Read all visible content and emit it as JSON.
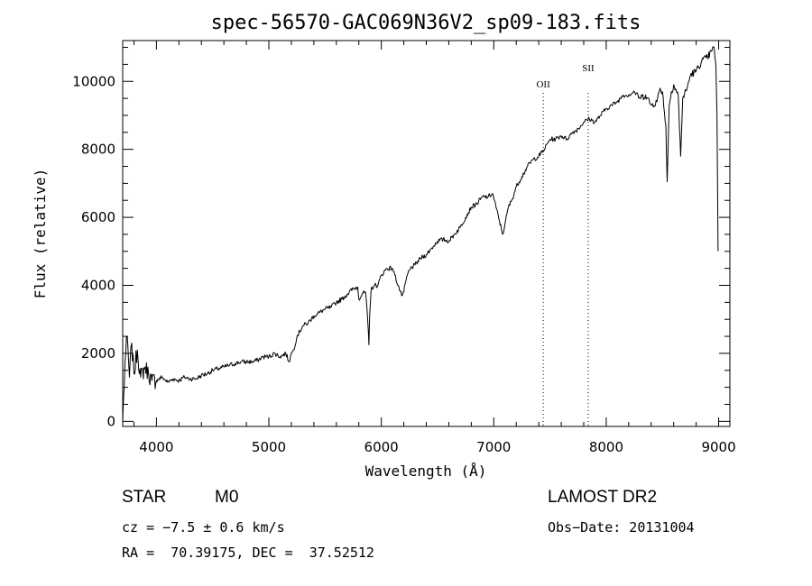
{
  "chart_data": {
    "type": "line",
    "title": "spec-56570-GAC069N36V2_sp09-183.fits",
    "xlabel": "Wavelength (Å)",
    "ylabel": "Flux (relative)",
    "xlim": [
      3700,
      9100
    ],
    "ylim": [
      -150,
      11200
    ],
    "xticks": [
      4000,
      5000,
      6000,
      7000,
      8000,
      9000
    ],
    "yticks": [
      0,
      2000,
      4000,
      6000,
      8000,
      10000
    ],
    "series": [
      {
        "x": [
          3700,
          3720,
          3740,
          3760,
          3780,
          3800,
          3830,
          3860,
          3900,
          3930,
          3960,
          4000,
          4050,
          4100,
          4150,
          4200,
          4250,
          4300,
          4350,
          4400,
          4450,
          4500,
          4550,
          4600,
          4650,
          4700,
          4750,
          4800,
          4850,
          4900,
          4950,
          5000,
          5050,
          5100,
          5150,
          5180,
          5200,
          5220,
          5250,
          5300,
          5350,
          5400,
          5450,
          5500,
          5550,
          5600,
          5650,
          5700,
          5750,
          5790,
          5800,
          5830,
          5860,
          5880,
          5890,
          5896,
          5910,
          5940,
          5970,
          6000,
          6050,
          6100,
          6120,
          6150,
          6180,
          6200,
          6230,
          6260,
          6300,
          6350,
          6400,
          6450,
          6500,
          6550,
          6600,
          6650,
          6700,
          6750,
          6800,
          6850,
          6900,
          6950,
          6990,
          7020,
          7050,
          7080,
          7100,
          7130,
          7160,
          7200,
          7250,
          7300,
          7350,
          7400,
          7450,
          7500,
          7550,
          7600,
          7650,
          7700,
          7750,
          7800,
          7850,
          7900,
          7950,
          8000,
          8050,
          8100,
          8150,
          8200,
          8250,
          8300,
          8350,
          8400,
          8450,
          8480,
          8500,
          8530,
          8542,
          8560,
          8580,
          8600,
          8640,
          8662,
          8680,
          8720,
          8750,
          8800,
          8850,
          8900,
          8940,
          8960,
          8975,
          8985,
          8995
        ],
        "y": [
          0,
          1700,
          2500,
          1300,
          2300,
          1400,
          2100,
          1300,
          1600,
          1400,
          1200,
          1200,
          1300,
          1150,
          1250,
          1200,
          1300,
          1250,
          1250,
          1350,
          1400,
          1500,
          1550,
          1600,
          1650,
          1700,
          1750,
          1750,
          1750,
          1800,
          1900,
          1900,
          2000,
          1900,
          2000,
          1750,
          2000,
          2100,
          2500,
          2800,
          2900,
          3100,
          3200,
          3300,
          3350,
          3500,
          3600,
          3750,
          3900,
          3950,
          3600,
          3750,
          3800,
          2900,
          2250,
          3100,
          3900,
          4000,
          4000,
          4300,
          4500,
          4500,
          4300,
          4000,
          3700,
          3800,
          4300,
          4500,
          4600,
          4800,
          4900,
          5100,
          5300,
          5350,
          5300,
          5500,
          5700,
          6000,
          6300,
          6400,
          6600,
          6600,
          6700,
          6300,
          5900,
          5500,
          5800,
          6300,
          6500,
          6900,
          7200,
          7500,
          7700,
          7800,
          8000,
          8300,
          8300,
          8400,
          8300,
          8500,
          8600,
          8800,
          8900,
          8800,
          9000,
          9200,
          9300,
          9400,
          9600,
          9600,
          9700,
          9500,
          9600,
          9300,
          9400,
          9800,
          9700,
          8700,
          7050,
          9300,
          9700,
          9900,
          9600,
          7800,
          9500,
          9800,
          10200,
          10300,
          10600,
          10700,
          10900,
          11000,
          10500,
          9000,
          5000
        ]
      }
    ],
    "lines": [
      {
        "label": "OII",
        "x": 7440
      },
      {
        "label": "SII",
        "x": 7840
      }
    ],
    "grid": false
  },
  "info": {
    "object_class": "STAR",
    "subclass": "M0",
    "survey": "LAMOST DR2",
    "cz": "cz = −7.5 ± 0.6 km/s",
    "obs_date": "Obs−Date: 20131004",
    "coords": "RA =  70.39175, DEC =  37.52512"
  }
}
